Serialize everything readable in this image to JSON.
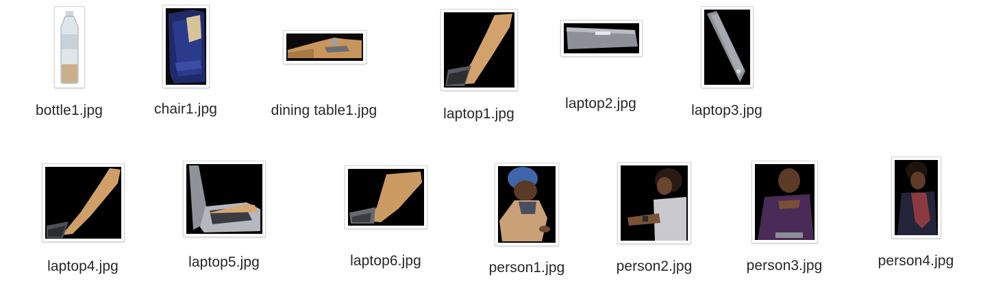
{
  "files": [
    {
      "name": "bottle1.jpg",
      "subject": "bottle"
    },
    {
      "name": "chair1.jpg",
      "subject": "chair"
    },
    {
      "name": "dining table1.jpg",
      "subject": "dining table"
    },
    {
      "name": "laptop1.jpg",
      "subject": "laptop"
    },
    {
      "name": "laptop2.jpg",
      "subject": "laptop"
    },
    {
      "name": "laptop3.jpg",
      "subject": "laptop"
    },
    {
      "name": "laptop4.jpg",
      "subject": "laptop"
    },
    {
      "name": "laptop5.jpg",
      "subject": "laptop"
    },
    {
      "name": "laptop6.jpg",
      "subject": "laptop"
    },
    {
      "name": "person1.jpg",
      "subject": "person"
    },
    {
      "name": "person2.jpg",
      "subject": "person"
    },
    {
      "name": "person3.jpg",
      "subject": "person"
    },
    {
      "name": "person4.jpg",
      "subject": "person"
    }
  ]
}
